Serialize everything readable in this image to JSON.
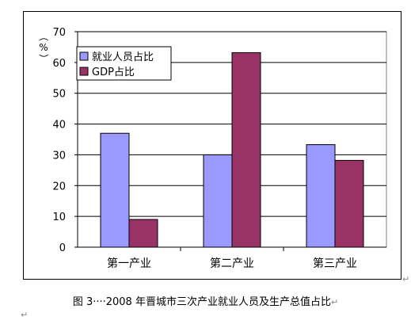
{
  "chart_data": {
    "type": "bar",
    "categories": [
      "第一产业",
      "第二产业",
      "第三产业"
    ],
    "series": [
      {
        "name": "就业人员占比",
        "values": [
          37,
          30,
          33.3
        ],
        "color": "#9999ff"
      },
      {
        "name": "GDP占比",
        "values": [
          9,
          63.2,
          28.2
        ],
        "color": "#993366"
      }
    ],
    "ylabel": "（%）",
    "ylim": [
      0,
      70
    ],
    "yticks": [
      0,
      10,
      20,
      30,
      40,
      50,
      60,
      70
    ],
    "grid": true,
    "legend_position": "top-left"
  },
  "caption": "图 3····2008 年晋城市三次产业就业人员及生产总值占比",
  "para_mark": "↵"
}
